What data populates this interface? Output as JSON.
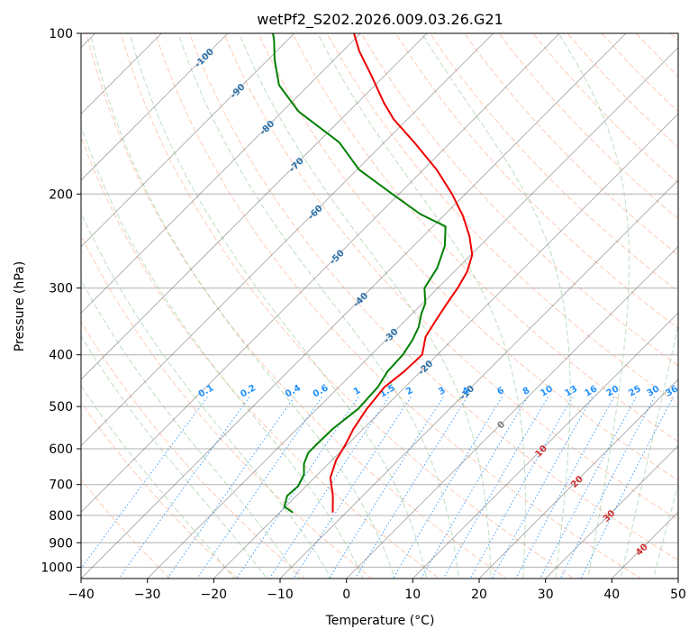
{
  "chart_data": {
    "type": "line",
    "title": "wetPf2_S202.2026.009.03.26.G21",
    "xlabel": "Temperature (°C)",
    "ylabel": "Pressure (hPa)",
    "xlim": [
      -40,
      50
    ],
    "ylim": [
      1050,
      100
    ],
    "x_ticks": [
      "−40",
      "−30",
      "−20",
      "−10",
      "0",
      "10",
      "20",
      "30",
      "40",
      "50"
    ],
    "y_ticks": [
      "100",
      "200",
      "300",
      "400",
      "500",
      "600",
      "700",
      "800",
      "900",
      "1000"
    ],
    "skew": 45,
    "series": [
      {
        "name": "Temperature",
        "color": "#ee0000",
        "points": [
          [
            -12,
            790
          ],
          [
            -14.5,
            735
          ],
          [
            -17.6,
            680
          ],
          [
            -19.4,
            630
          ],
          [
            -20.3,
            590
          ],
          [
            -21.5,
            550
          ],
          [
            -22.5,
            505
          ],
          [
            -23.1,
            460
          ],
          [
            -22.5,
            430
          ],
          [
            -22.3,
            400
          ],
          [
            -24.5,
            370
          ],
          [
            -25.4,
            345
          ],
          [
            -26.3,
            320
          ],
          [
            -27.0,
            300
          ],
          [
            -28.0,
            280
          ],
          [
            -29.8,
            260
          ],
          [
            -33.0,
            240
          ],
          [
            -37.0,
            220
          ],
          [
            -42.0,
            200
          ],
          [
            -48.0,
            180
          ],
          [
            -55.5,
            160
          ],
          [
            -62.0,
            145
          ],
          [
            -66.0,
            135
          ],
          [
            -72.0,
            120
          ],
          [
            -77.5,
            108
          ],
          [
            -81.0,
            100
          ]
        ]
      },
      {
        "name": "Dewpoint",
        "color": "#008000",
        "points": [
          [
            -18,
            790
          ],
          [
            -20.2,
            770
          ],
          [
            -21.4,
            735
          ],
          [
            -21.2,
            705
          ],
          [
            -22.1,
            670
          ],
          [
            -23.7,
            640
          ],
          [
            -24.7,
            610
          ],
          [
            -24.7,
            585
          ],
          [
            -24.6,
            550
          ],
          [
            -23.8,
            505
          ],
          [
            -24.1,
            460
          ],
          [
            -25.0,
            430
          ],
          [
            -25.2,
            400
          ],
          [
            -26.0,
            375
          ],
          [
            -27.0,
            355
          ],
          [
            -28.6,
            335
          ],
          [
            -29.6,
            320
          ],
          [
            -32.0,
            300
          ],
          [
            -33.1,
            275
          ],
          [
            -35.3,
            250
          ],
          [
            -38.1,
            230
          ],
          [
            -43.8,
            218
          ],
          [
            -51.0,
            200
          ],
          [
            -59.7,
            180
          ],
          [
            -66.8,
            160
          ],
          [
            -77.6,
            140
          ],
          [
            -84.5,
            125
          ],
          [
            -89.0,
            112
          ],
          [
            -92.0,
            103
          ],
          [
            -93.2,
            100
          ]
        ]
      }
    ],
    "reference_lines": {
      "dry_adiabat_color": "#ffa07a",
      "moist_adiabat_color": "#7ebf7e",
      "mixing_ratio_color": "#1e90ff",
      "isotherm_color": "#555555",
      "isotherm_values_c": [
        -150,
        -140,
        -130,
        -120,
        -110,
        -100,
        -90,
        -80,
        -70,
        -60,
        -50,
        -40,
        -30,
        -20,
        -10,
        0,
        10,
        20,
        30,
        40,
        50
      ],
      "isotherm_labels": [
        {
          "text": "-100",
          "temp_c": -100,
          "pressure_hpa": 111
        },
        {
          "text": "-90",
          "temp_c": -90,
          "pressure_hpa": 128
        },
        {
          "text": "-80",
          "temp_c": -80,
          "pressure_hpa": 150
        },
        {
          "text": "-70",
          "temp_c": -70,
          "pressure_hpa": 176
        },
        {
          "text": "-60",
          "temp_c": -60,
          "pressure_hpa": 216
        },
        {
          "text": "-50",
          "temp_c": -50,
          "pressure_hpa": 262
        },
        {
          "text": "-40",
          "temp_c": -40,
          "pressure_hpa": 315
        },
        {
          "text": "-30",
          "temp_c": -30,
          "pressure_hpa": 368
        },
        {
          "text": "-20",
          "temp_c": -20,
          "pressure_hpa": 422
        },
        {
          "text": "-10",
          "temp_c": -10,
          "pressure_hpa": 470
        },
        {
          "text": "0",
          "temp_c": 0,
          "pressure_hpa": 540
        },
        {
          "text": "10",
          "temp_c": 10,
          "pressure_hpa": 605
        },
        {
          "text": "20",
          "temp_c": 20,
          "pressure_hpa": 690
        },
        {
          "text": "30",
          "temp_c": 30,
          "pressure_hpa": 800
        },
        {
          "text": "40",
          "temp_c": 40,
          "pressure_hpa": 925
        }
      ],
      "mixing_ratio_values": [
        "0.1",
        "0.2",
        "0.4",
        "0.6",
        "1",
        "1.5",
        "2",
        "3",
        "4",
        "6",
        "8",
        "10",
        "13",
        "16",
        "20",
        "25",
        "30",
        "36"
      ],
      "mixing_ratio_label_pressure_hpa": 480
    }
  }
}
